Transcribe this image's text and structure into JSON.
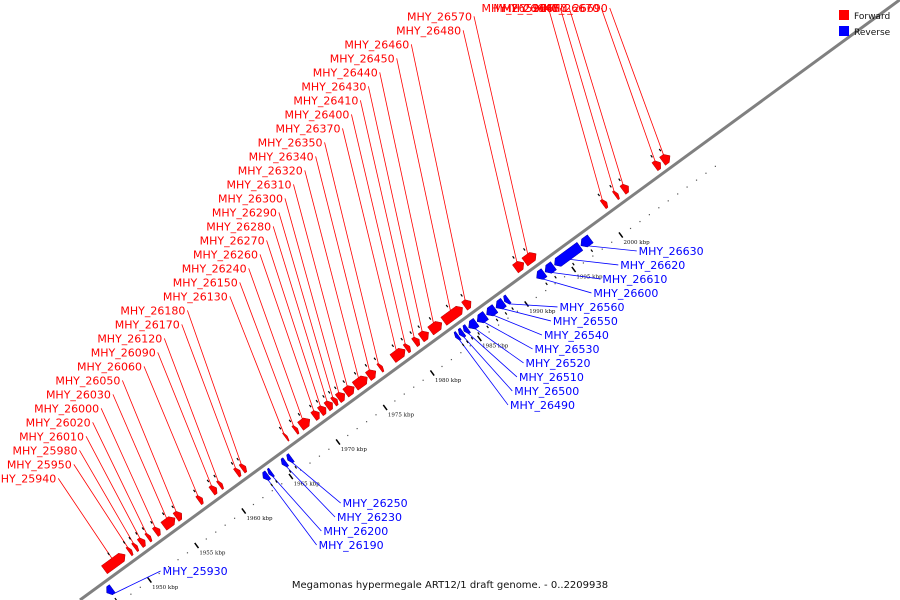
{
  "caption": "Megamonas hypermegale ART12/1 draft genome. - 0..2209938",
  "colors": {
    "forward": "#ff0000",
    "reverse": "#0000ff",
    "backbone": "#808080",
    "tick": "#000000"
  },
  "legend": [
    {
      "name": "Forward",
      "strand": "forward"
    },
    {
      "name": "Reverse",
      "strand": "reverse"
    }
  ],
  "axis": {
    "unit": "kbp",
    "ticks": [
      {
        "kbp": 1950,
        "label": "1950 kbp"
      },
      {
        "kbp": 1955,
        "label": "1955 kbp"
      },
      {
        "kbp": 1960,
        "label": "1960 kbp"
      },
      {
        "kbp": 1965,
        "label": "1965 kbp"
      },
      {
        "kbp": 1970,
        "label": "1970 kbp"
      },
      {
        "kbp": 1975,
        "label": "1975 kbp"
      },
      {
        "kbp": 1980,
        "label": "1980 kbp"
      },
      {
        "kbp": 1985,
        "label": "1985 kbp"
      },
      {
        "kbp": 1990,
        "label": "1990 kbp"
      },
      {
        "kbp": 1995,
        "label": "1995 kbp"
      },
      {
        "kbp": 2000,
        "label": "2000 kbp"
      }
    ]
  },
  "genes": [
    {
      "id": "MHY_25930",
      "strand": "reverse",
      "start": 1946.4,
      "end": 1947.0
    },
    {
      "id": "MHY_25940",
      "strand": "forward",
      "start": 1947.4,
      "end": 1949.6
    },
    {
      "id": "MHY_25950",
      "strand": "forward",
      "start": 1950.0,
      "end": 1950.3
    },
    {
      "id": "MHY_25980",
      "strand": "forward",
      "start": 1950.6,
      "end": 1950.9
    },
    {
      "id": "MHY_26010",
      "strand": "forward",
      "start": 1951.2,
      "end": 1951.7
    },
    {
      "id": "MHY_26020",
      "strand": "forward",
      "start": 1952.0,
      "end": 1952.3
    },
    {
      "id": "MHY_26000",
      "strand": "forward",
      "start": 1952.8,
      "end": 1953.3
    },
    {
      "id": "MHY_26030",
      "strand": "forward",
      "start": 1953.7,
      "end": 1954.9
    },
    {
      "id": "MHY_26050",
      "strand": "forward",
      "start": 1955.0,
      "end": 1955.6
    },
    {
      "id": "MHY_26060",
      "strand": "forward",
      "start": 1957.4,
      "end": 1957.8
    },
    {
      "id": "MHY_26090",
      "strand": "forward",
      "start": 1958.8,
      "end": 1959.3
    },
    {
      "id": "MHY_26120",
      "strand": "forward",
      "start": 1959.6,
      "end": 1959.9
    },
    {
      "id": "MHY_26170",
      "strand": "forward",
      "start": 1961.4,
      "end": 1961.8
    },
    {
      "id": "MHY_26190",
      "strand": "reverse",
      "start": 1963.0,
      "end": 1963.5
    },
    {
      "id": "MHY_26200",
      "strand": "reverse",
      "start": 1963.6,
      "end": 1963.9
    },
    {
      "id": "MHY_26230",
      "strand": "reverse",
      "start": 1965.0,
      "end": 1965.4
    },
    {
      "id": "MHY_26250",
      "strand": "reverse",
      "start": 1965.6,
      "end": 1966.0
    },
    {
      "id": "MHY_26180",
      "strand": "forward",
      "start": 1962.0,
      "end": 1962.4
    },
    {
      "id": "MHY_26130",
      "strand": "forward",
      "start": 1966.6,
      "end": 1966.8
    },
    {
      "id": "MHY_26150",
      "strand": "forward",
      "start": 1967.6,
      "end": 1967.9
    },
    {
      "id": "MHY_26240",
      "strand": "forward",
      "start": 1968.2,
      "end": 1969.2
    },
    {
      "id": "MHY_26260",
      "strand": "forward",
      "start": 1969.6,
      "end": 1970.2
    },
    {
      "id": "MHY_26270",
      "strand": "forward",
      "start": 1970.3,
      "end": 1970.9
    },
    {
      "id": "MHY_26280",
      "strand": "forward",
      "start": 1971.0,
      "end": 1971.6
    },
    {
      "id": "MHY_26290",
      "strand": "forward",
      "start": 1971.7,
      "end": 1972.1
    },
    {
      "id": "MHY_26300",
      "strand": "forward",
      "start": 1972.2,
      "end": 1972.9
    },
    {
      "id": "MHY_26310",
      "strand": "forward",
      "start": 1973.0,
      "end": 1973.9
    },
    {
      "id": "MHY_26320",
      "strand": "forward",
      "start": 1974.0,
      "end": 1975.3
    },
    {
      "id": "MHY_26340",
      "strand": "forward",
      "start": 1975.4,
      "end": 1976.2
    },
    {
      "id": "MHY_26350",
      "strand": "forward",
      "start": 1976.6,
      "end": 1976.9
    },
    {
      "id": "MHY_26370",
      "strand": "forward",
      "start": 1978.0,
      "end": 1979.3
    },
    {
      "id": "MHY_26400",
      "strand": "forward",
      "start": 1979.4,
      "end": 1979.8
    },
    {
      "id": "MHY_26410",
      "strand": "forward",
      "start": 1980.3,
      "end": 1980.8
    },
    {
      "id": "MHY_26430",
      "strand": "forward",
      "start": 1981.0,
      "end": 1981.8
    },
    {
      "id": "MHY_26440",
      "strand": "forward",
      "start": 1982.0,
      "end": 1983.2
    },
    {
      "id": "MHY_26450",
      "strand": "forward",
      "start": 1983.4,
      "end": 1985.4
    },
    {
      "id": "MHY_26460",
      "strand": "forward",
      "start": 1985.6,
      "end": 1986.3
    },
    {
      "id": "MHY_26490",
      "strand": "reverse",
      "start": 1983.4,
      "end": 1983.7
    },
    {
      "id": "MHY_26500",
      "strand": "reverse",
      "start": 1983.8,
      "end": 1984.2
    },
    {
      "id": "MHY_26510",
      "strand": "reverse",
      "start": 1984.3,
      "end": 1984.7
    },
    {
      "id": "MHY_26520",
      "strand": "reverse",
      "start": 1984.8,
      "end": 1985.6
    },
    {
      "id": "MHY_26530",
      "strand": "reverse",
      "start": 1985.7,
      "end": 1986.6
    },
    {
      "id": "MHY_26540",
      "strand": "reverse",
      "start": 1986.7,
      "end": 1987.6
    },
    {
      "id": "MHY_26550",
      "strand": "reverse",
      "start": 1987.7,
      "end": 1988.5
    },
    {
      "id": "MHY_26560",
      "strand": "reverse",
      "start": 1988.6,
      "end": 1989.0
    },
    {
      "id": "MHY_26480",
      "strand": "forward",
      "start": 1991.0,
      "end": 1991.9
    },
    {
      "id": "MHY_26570",
      "strand": "forward",
      "start": 1992.0,
      "end": 1993.2
    },
    {
      "id": "MHY_26600",
      "strand": "reverse",
      "start": 1992.0,
      "end": 1992.8
    },
    {
      "id": "MHY_26610",
      "strand": "reverse",
      "start": 1992.9,
      "end": 1993.8
    },
    {
      "id": "MHY_26620",
      "strand": "reverse",
      "start": 1993.9,
      "end": 1996.6
    },
    {
      "id": "MHY_26630",
      "strand": "reverse",
      "start": 1996.7,
      "end": 1997.7
    },
    {
      "id": "MHY_26590",
      "strand": "forward",
      "start": 2000.3,
      "end": 2000.7
    },
    {
      "id": "MHY_26640",
      "strand": "forward",
      "start": 2001.6,
      "end": 2001.9
    },
    {
      "id": "MHY_26650",
      "strand": "forward",
      "start": 2002.4,
      "end": 2003.0
    },
    {
      "id": "MHY_26670",
      "strand": "forward",
      "start": 2005.8,
      "end": 2006.4
    },
    {
      "id": "MHY_26690",
      "strand": "forward",
      "start": 2006.6,
      "end": 2007.4
    }
  ]
}
